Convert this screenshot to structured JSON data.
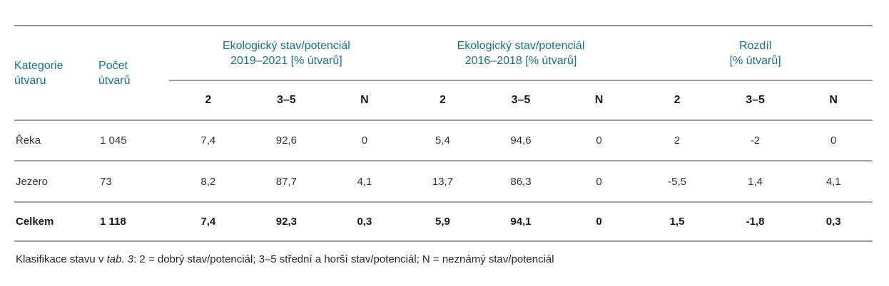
{
  "colors": {
    "header_teal": "#117487",
    "rule_gray": "#9b9b9b",
    "body_text": "#333333"
  },
  "table": {
    "headers": {
      "kategorie": [
        "Kategorie",
        "útvaru"
      ],
      "pocet": [
        "Počet",
        "útvarů"
      ]
    },
    "groups": [
      {
        "line1": "Ekologický stav/potenciál",
        "line2": "2019–2021 [% útvarů]"
      },
      {
        "line1": "Ekologický stav/potenciál",
        "line2": "2016–2018 [% útvarů]"
      },
      {
        "line1": "Rozdíl",
        "line2": "[% útvarů]"
      }
    ],
    "subheaders": [
      "2",
      "3–5",
      "N"
    ],
    "rows": [
      {
        "label": "Řeka",
        "count": "1 045",
        "values": [
          "7,4",
          "92,6",
          "0",
          "5,4",
          "94,6",
          "0",
          "2",
          "-2",
          "0"
        ]
      },
      {
        "label": "Jezero",
        "count": "73",
        "values": [
          "8,2",
          "87,7",
          "4,1",
          "13,7",
          "86,3",
          "0",
          "-5,5",
          "1,4",
          "4,1"
        ]
      },
      {
        "label": "Celkem",
        "count": "1 118",
        "values": [
          "7,4",
          "92,3",
          "0,3",
          "5,9",
          "94,1",
          "0",
          "1,5",
          "-1,8",
          "0,3"
        ]
      }
    ]
  },
  "footnote": {
    "prefix": "Klasifikace stavu v ",
    "ref": "tab. 3",
    "suffix": ": 2 = dobrý stav/potenciál; 3–5 střední a horší stav/potenciál; N = neznámý stav/potenciál"
  }
}
